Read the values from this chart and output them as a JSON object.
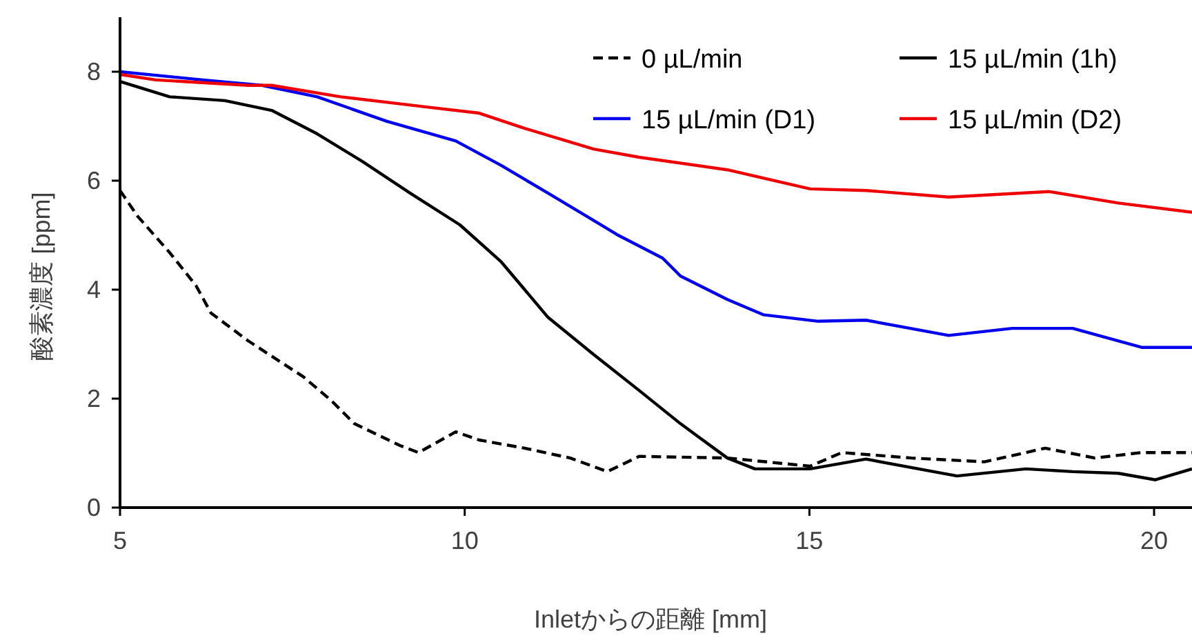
{
  "chart_data": {
    "type": "line",
    "xlabel": "Inletからの距離 [mm]",
    "ylabel": "酸素濃度 [ppm]",
    "xlim": [
      5,
      20.55
    ],
    "xticks": [
      5,
      10,
      15,
      20
    ],
    "ylim": [
      0,
      9
    ],
    "yticks": [
      0,
      2,
      4,
      6,
      8
    ],
    "grid": false,
    "legend": "top right",
    "marker": "none",
    "series": [
      {
        "name": "0 µL/min",
        "color": "#000000",
        "line_style": "dashed",
        "x": [
          5.0,
          5.26,
          5.72,
          6.1,
          6.32,
          6.86,
          7.66,
          8.06,
          8.4,
          9.06,
          9.33,
          9.87,
          10.21,
          10.87,
          11.53,
          12.07,
          12.53,
          13.81,
          15.01,
          15.47,
          16.48,
          17.54,
          18.42,
          19.14,
          19.82,
          20.55
        ],
        "values": [
          5.82,
          5.34,
          4.68,
          4.08,
          3.57,
          3.06,
          2.4,
          1.97,
          1.54,
          1.14,
          1.01,
          1.39,
          1.24,
          1.09,
          0.91,
          0.66,
          0.94,
          0.91,
          0.76,
          1.01,
          0.91,
          0.84,
          1.09,
          0.91,
          1.01,
          1.01
        ]
      },
      {
        "name": "15 µL/min (1h)",
        "color": "#000000",
        "line_style": "solid",
        "x": [
          5.0,
          5.72,
          6.52,
          7.2,
          7.86,
          8.52,
          9.21,
          9.93,
          10.53,
          11.21,
          11.87,
          12.53,
          13.13,
          13.81,
          14.21,
          15.01,
          15.82,
          17.14,
          18.14,
          18.82,
          19.48,
          20.02,
          20.55
        ],
        "values": [
          7.82,
          7.54,
          7.47,
          7.29,
          6.86,
          6.35,
          5.77,
          5.19,
          4.51,
          3.49,
          2.81,
          2.15,
          1.54,
          0.91,
          0.71,
          0.71,
          0.89,
          0.58,
          0.71,
          0.66,
          0.63,
          0.51,
          0.71
        ]
      },
      {
        "name": "15 µL/min (D1)",
        "color": "#0000ee",
        "line_style": "solid",
        "x": [
          5.0,
          6.2,
          7.06,
          7.86,
          8.87,
          9.87,
          10.53,
          11.21,
          11.87,
          12.21,
          12.87,
          13.13,
          13.81,
          14.33,
          15.13,
          15.82,
          17.02,
          17.94,
          18.82,
          19.82,
          20.55
        ],
        "values": [
          8.0,
          7.85,
          7.75,
          7.54,
          7.09,
          6.73,
          6.28,
          5.77,
          5.27,
          5.01,
          4.58,
          4.25,
          3.82,
          3.54,
          3.42,
          3.44,
          3.16,
          3.29,
          3.29,
          2.94,
          2.94
        ]
      },
      {
        "name": "15 µL/min (D2)",
        "color": "#ee0000",
        "line_style": "solid",
        "x": [
          5.0,
          5.52,
          6.86,
          7.2,
          8.2,
          9.53,
          10.21,
          10.87,
          11.87,
          12.53,
          13.81,
          15.01,
          15.82,
          17.02,
          18.48,
          19.48,
          20.55
        ],
        "values": [
          7.95,
          7.85,
          7.75,
          7.75,
          7.54,
          7.34,
          7.24,
          6.96,
          6.58,
          6.43,
          6.2,
          5.85,
          5.82,
          5.7,
          5.8,
          5.59,
          5.42
        ]
      }
    ]
  }
}
